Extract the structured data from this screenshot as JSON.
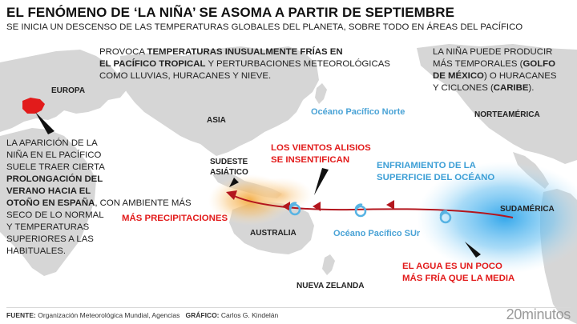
{
  "header": {
    "title": "EL FENÓMENO DE ‘LA NIÑA’ SE ASOMA A PARTIR DE SEPTIEMBRE",
    "subtitle": "SE INICIA UN DESCENSO DE LAS TEMPERATURAS GLOBALES DEL PLANETA, SOBRE TODO EN ÁREAS DEL PACÍFICO"
  },
  "regions": {
    "europa": "EUROPA",
    "asia": "ASIA",
    "sudeste_1": "SUDESTE",
    "sudeste_2": "ASIÁTICO",
    "australia": "AUSTRALIA",
    "nueva_zelanda": "NUEVA ZELANDA",
    "norteamerica": "NORTEAMÉRICA",
    "sudamerica": "SUDAMÉRICA"
  },
  "oceans": {
    "pacifico_norte": "Océano Pacífico Norte",
    "pacifico_sur": "Océano Pacífico SUr"
  },
  "notes": {
    "pacific": {
      "p1": "PROVOCA ",
      "b1": "TEMPERATURAS INUSUALMENTE FRÍAS EN",
      "b2": "EL PACÍFICO TROPICAL",
      "p2": " Y PERTURBACIONES METEOROLÓGICAS",
      "p3": "COMO LLUVIAS, HURACANES Y NIEVE."
    },
    "america": {
      "l1": "LA NIÑA PUEDE PRODUCIR",
      "l2a": "MÁS TEMPORALES (",
      "l2b": "GOLFO",
      "l3a": "DE MÉXICO",
      "l3b": ") O HURACANES",
      "l4a": "Y CICLONES (",
      "l4b": "CARIBE",
      "l4c": ")."
    },
    "spain": {
      "l1": "LA APARICIÓN DE LA",
      "l2": "NIÑA EN EL PACÍFICO",
      "l3": "SUELE TRAER CIERTA",
      "b1": "PROLONGACIÓN DEL",
      "b2": "VERANO HACIA EL",
      "b3": "OTOÑO EN ESPAÑA",
      "l7": ", CON AMBIENTE MÁS",
      "l8": "SECO DE LO NORMAL",
      "l9": "Y TEMPERATURAS",
      "l10": "SUPERIORES A LAS",
      "l11": "HABITUALES."
    }
  },
  "callouts": {
    "vientos_1": "LOS VIENTOS ALISIOS",
    "vientos_2": "SE INSENTIFICAN",
    "precip": "MÁS PRECIPITACIONES",
    "agua_1": "EL AGUA ES UN POCO",
    "agua_2": "MÁS FRÍA QUE LA MEDIA",
    "enfri_1": "ENFRIAMIENTO DE LA",
    "enfri_2": "SUPERFICIE DEL OCÉANO"
  },
  "footer": {
    "fuente_label": "FUENTE:",
    "fuente": " Organización Meteorológica Mundial, Agencias",
    "grafico_label": "GRÁFICO:",
    "grafico": " Carlos G. Kindelán",
    "brand": "20minutos"
  },
  "colors": {
    "land": "#d6d6d6",
    "spain": "#e21b1b",
    "warm": "#f5b24a",
    "cold": "#3fa9e6",
    "arrow": "#b3161e",
    "ocean_label": "#4aa3d6"
  }
}
